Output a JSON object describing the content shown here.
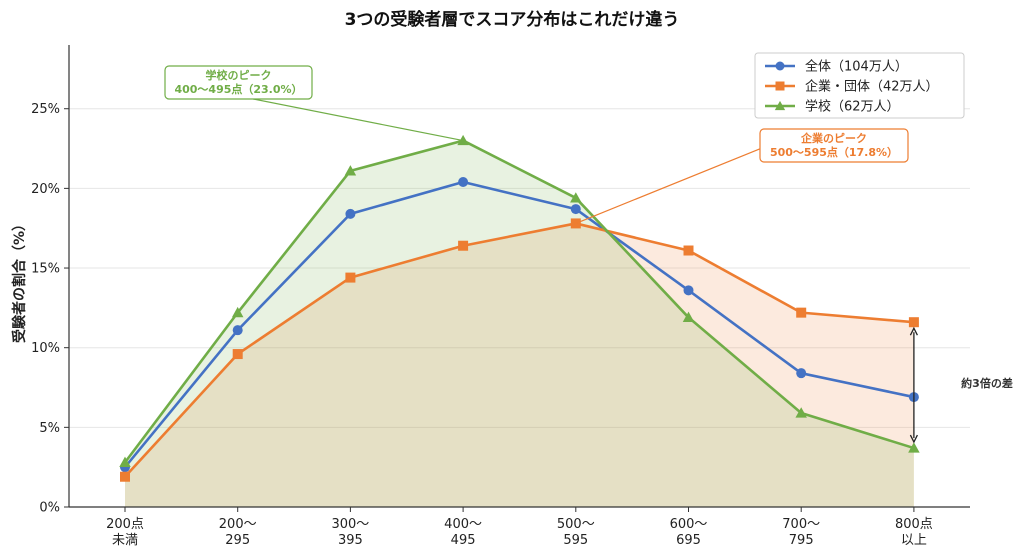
{
  "chart_data": {
    "type": "line",
    "title": "3つの受験者層でスコア分布はこれだけ違う",
    "ylabel": "受験者の割合（%）",
    "xlabel": "",
    "categories": [
      [
        "200点",
        "未満"
      ],
      [
        "200〜",
        "295"
      ],
      [
        "300〜",
        "395"
      ],
      [
        "400〜",
        "495"
      ],
      [
        "500〜",
        "595"
      ],
      [
        "600〜",
        "695"
      ],
      [
        "700〜",
        "795"
      ],
      [
        "800点",
        "以上"
      ]
    ],
    "ylim": [
      0,
      29
    ],
    "yticks": [
      0,
      5,
      10,
      15,
      20,
      25
    ],
    "ytick_labels": [
      "0%",
      "5%",
      "10%",
      "15%",
      "20%",
      "25%"
    ],
    "grid": true,
    "legend_position": "top-right",
    "series": [
      {
        "name": "全体（104万人）",
        "color": "#4472C4",
        "marker": "circle",
        "fill": false,
        "values": [
          2.5,
          11.1,
          18.4,
          20.4,
          18.7,
          13.6,
          8.4,
          6.9
        ]
      },
      {
        "name": "企業・団体（42万人）",
        "color": "#ED7D31",
        "marker": "square",
        "fill": true,
        "fill_color": "#ED7D31",
        "values": [
          1.9,
          9.6,
          14.4,
          16.4,
          17.8,
          16.1,
          12.2,
          11.6
        ]
      },
      {
        "name": "学校（62万人）",
        "color": "#70AD47",
        "marker": "triangle",
        "fill": true,
        "fill_color": "#70AD47",
        "values": [
          2.8,
          12.2,
          21.1,
          23.0,
          19.4,
          11.9,
          5.9,
          3.7
        ]
      }
    ],
    "annotations": [
      {
        "lines": [
          "学校のピーク",
          "400〜495点（23.0%）"
        ],
        "color": "#70AD47",
        "target_index": 3,
        "target_series": 2
      },
      {
        "lines": [
          "企業のピーク",
          "500〜595点（17.8%）"
        ],
        "color": "#ED7D31",
        "target_index": 4,
        "target_series": 1
      }
    ],
    "difference_marker": {
      "label": "約3倍の差",
      "index": 7,
      "from_series": 2,
      "to_series": 1
    }
  }
}
